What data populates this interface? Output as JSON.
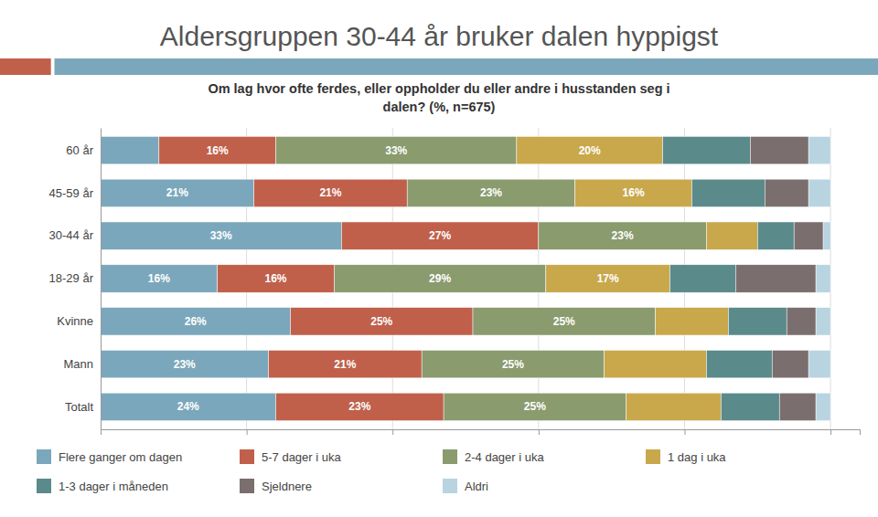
{
  "chart_data": {
    "type": "bar",
    "orientation": "horizontal",
    "stacked": true,
    "title": "Aldersgruppen 30-44 år bruker dalen hyppigst",
    "subtitle": "Om lag hvor ofte ferdes, eller oppholder du eller andre i husstanden seg i\ndalen? (%, n=675)",
    "categories": [
      "Totalt",
      "Mann",
      "Kvinne",
      "18-29 år",
      "30-44 år",
      "45-59 år",
      "60 år"
    ],
    "series": [
      {
        "name": "Flere ganger om dagen",
        "color": "#7ba7bc",
        "values": [
          24,
          23,
          26,
          16,
          33,
          21,
          8
        ],
        "value_labels": [
          "24%",
          "23%",
          "26%",
          "16%",
          "33%",
          "21%",
          null
        ]
      },
      {
        "name": "5-7 dager i uka",
        "color": "#c0604a",
        "values": [
          23,
          21,
          25,
          16,
          27,
          21,
          16
        ],
        "value_labels": [
          "23%",
          "21%",
          "25%",
          "16%",
          "27%",
          "21%",
          "16%"
        ]
      },
      {
        "name": "2-4 dager i uka",
        "color": "#8a9b6e",
        "values": [
          25,
          25,
          25,
          29,
          23,
          23,
          33
        ],
        "value_labels": [
          "25%",
          "25%",
          "25%",
          "29%",
          "23%",
          "23%",
          "33%"
        ]
      },
      {
        "name": "1 dag i uka",
        "color": "#c9a84c",
        "values": [
          13,
          14,
          10,
          17,
          7,
          16,
          20
        ],
        "value_labels": [
          null,
          null,
          null,
          "17%",
          null,
          "16%",
          "20%"
        ]
      },
      {
        "name": "1-3 dager i måneden",
        "color": "#5b8a8b",
        "values": [
          8,
          9,
          8,
          9,
          5,
          10,
          12
        ],
        "value_labels": [
          null,
          null,
          null,
          null,
          null,
          null,
          null
        ]
      },
      {
        "name": "Sjeldnere",
        "color": "#7a6e6e",
        "values": [
          5,
          5,
          4,
          11,
          4,
          6,
          8
        ],
        "value_labels": [
          null,
          null,
          null,
          null,
          null,
          null,
          null
        ]
      },
      {
        "name": "Aldri",
        "color": "#b8d4e0",
        "values": [
          2,
          3,
          2,
          2,
          1,
          3,
          3
        ],
        "value_labels": [
          null,
          null,
          null,
          null,
          null,
          null,
          null
        ]
      }
    ],
    "xlim": [
      0,
      104
    ],
    "xticks": [
      20,
      40,
      60,
      80,
      100
    ],
    "grid": true,
    "tick_labels": "y",
    "data_labels": true,
    "legend": "bottom"
  }
}
